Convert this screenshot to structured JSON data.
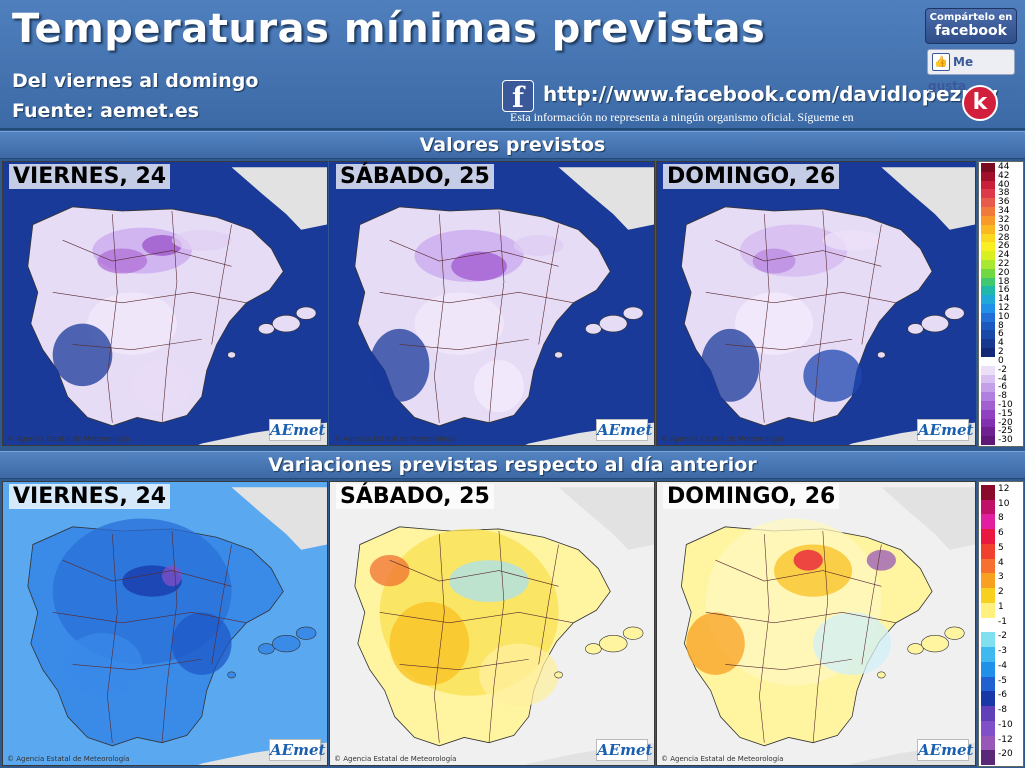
{
  "header": {
    "title": "Temperaturas mínimas previstas",
    "subtitle": "Del viernes al domingo",
    "source": "Fuente: aemet.es",
    "facebook_url": "http://www.facebook.com/davidlopezrey",
    "disclaimer": "Esta información no representa a ningún organismo oficial. Sígueme en",
    "share_line1": "Compártelo en",
    "share_line2": "facebook",
    "like_label": "Me gusta",
    "like_icon": "thumbs-up-icon",
    "facebook_icon": "f",
    "author_logo": "k"
  },
  "sections": {
    "forecast_title": "Valores previstos",
    "variation_title": "Variaciones previstas respecto al día anterior"
  },
  "maps": {
    "credit": "© Agencia Estatal de Meteorología",
    "logo": "AEmet",
    "forecast": [
      {
        "label": "VIERNES, 24"
      },
      {
        "label": "SÁBADO, 25"
      },
      {
        "label": "DOMINGO, 26"
      }
    ],
    "variation": [
      {
        "label": "VIERNES, 24"
      },
      {
        "label": "SÁBADO, 25"
      },
      {
        "label": "DOMINGO, 26"
      }
    ]
  },
  "legend_forecast": {
    "labels": [
      "44",
      "42",
      "40",
      "38",
      "36",
      "34",
      "32",
      "30",
      "28",
      "26",
      "24",
      "22",
      "20",
      "18",
      "16",
      "14",
      "12",
      "10",
      "8",
      "6",
      "4",
      "2",
      "0",
      "-2",
      "-4",
      "-6",
      "-8",
      "-10",
      "-15",
      "-20",
      "-25",
      "-30"
    ],
    "colors": [
      "#7a0a20",
      "#a0102a",
      "#c8203a",
      "#dc3a4a",
      "#e85a4a",
      "#f07a3a",
      "#f89a2a",
      "#fcb820",
      "#fcd820",
      "#f8f020",
      "#d8f020",
      "#a8e830",
      "#70d840",
      "#40c870",
      "#20b8a8",
      "#20a8d8",
      "#2090e8",
      "#2070d8",
      "#1a58c0",
      "#1848a8",
      "#183890",
      "#142878",
      "#ffffff",
      "#ece0f8",
      "#d8c0f0",
      "#c4a0e8",
      "#b080e0",
      "#a060d0",
      "#9040c0",
      "#8030b0",
      "#702090",
      "#601878"
    ]
  },
  "legend_variation": {
    "labels": [
      "12",
      "10",
      "8",
      "6",
      "5",
      "4",
      "3",
      "2",
      "1",
      "-1",
      "-2",
      "-3",
      "-4",
      "-5",
      "-6",
      "-8",
      "-10",
      "-12",
      "-20"
    ],
    "colors": [
      "#8a0a2a",
      "#c01068",
      "#e020a0",
      "#e81840",
      "#f04030",
      "#f87030",
      "#f8a020",
      "#f8d020",
      "#fff080",
      "#ffffff",
      "#80e0f0",
      "#40b8f0",
      "#2090e8",
      "#2060d0",
      "#1838a8",
      "#6040b8",
      "#8050c8",
      "#9858b8",
      "#5a2878"
    ]
  }
}
